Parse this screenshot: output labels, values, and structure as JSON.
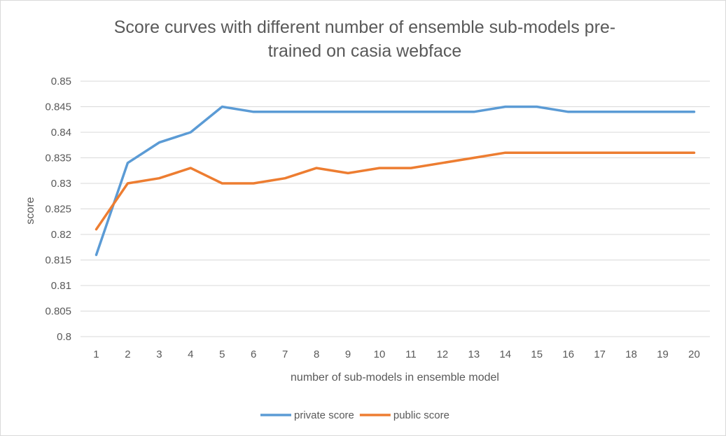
{
  "chart_data": {
    "type": "line",
    "title_lines": [
      "Score curves with different number of ensemble sub-models pre-",
      "trained on casia webface"
    ],
    "xlabel": "number of sub-models in ensemble model",
    "ylabel": "score",
    "categories": [
      "1",
      "2",
      "3",
      "4",
      "5",
      "6",
      "7",
      "8",
      "9",
      "10",
      "11",
      "12",
      "13",
      "14",
      "15",
      "16",
      "17",
      "18",
      "19",
      "20"
    ],
    "ylim": [
      0.8,
      0.85
    ],
    "yticks": [
      "0.8",
      "0.805",
      "0.81",
      "0.815",
      "0.82",
      "0.825",
      "0.83",
      "0.835",
      "0.84",
      "0.845",
      "0.85"
    ],
    "grid": true,
    "legend_position": "bottom",
    "series": [
      {
        "name": "private score",
        "color": "#5b9bd5",
        "values": [
          0.816,
          0.834,
          0.838,
          0.84,
          0.845,
          0.844,
          0.844,
          0.844,
          0.844,
          0.844,
          0.844,
          0.844,
          0.844,
          0.845,
          0.845,
          0.844,
          0.844,
          0.844,
          0.844,
          0.844
        ]
      },
      {
        "name": "public score",
        "color": "#ed7d31",
        "values": [
          0.821,
          0.83,
          0.831,
          0.833,
          0.83,
          0.83,
          0.831,
          0.833,
          0.832,
          0.833,
          0.833,
          0.834,
          0.835,
          0.836,
          0.836,
          0.836,
          0.836,
          0.836,
          0.836,
          0.836
        ]
      }
    ]
  }
}
